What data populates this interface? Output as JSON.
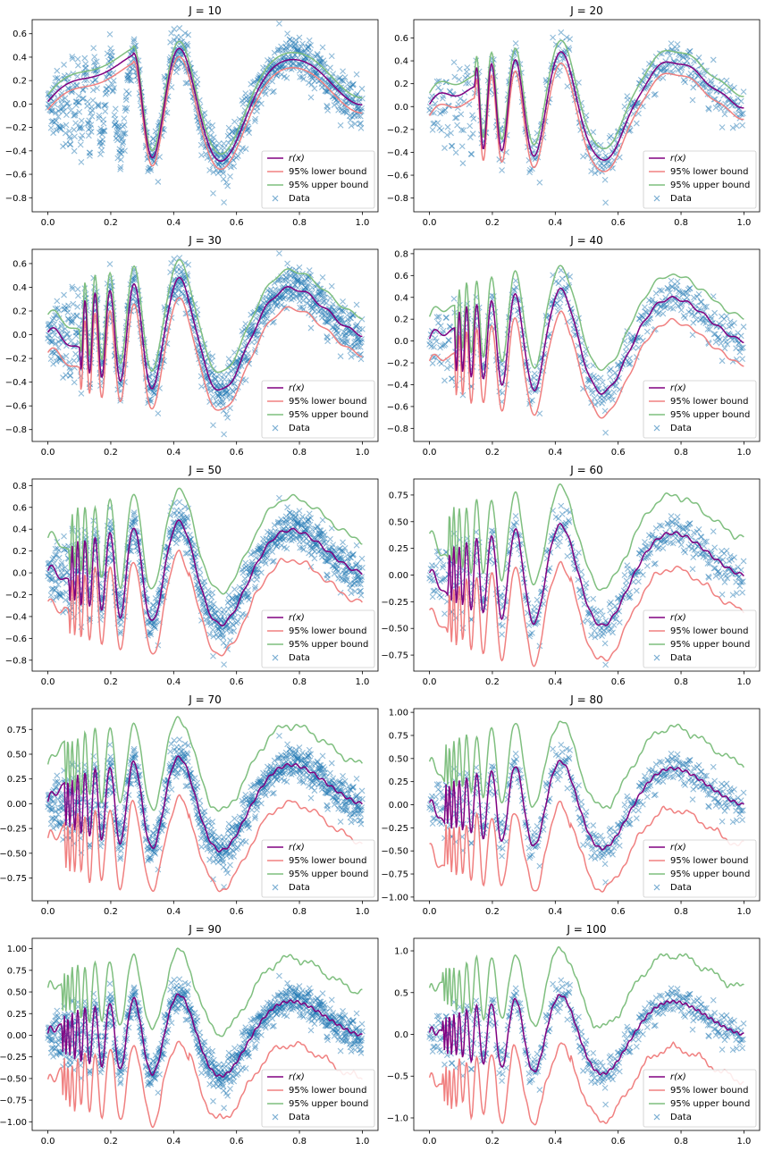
{
  "legend": {
    "labels": [
      "r(x)",
      "95% lower bound",
      "95% upper bound",
      "Data"
    ],
    "location": "lower right"
  },
  "colors": {
    "estimate": "#800080",
    "lower": "#f08080",
    "upper": "#7fbf7f",
    "data": "#1f77b4"
  },
  "chart_data": [
    {
      "type": "line",
      "title": "J = 10",
      "xlim": [
        -0.05,
        1.05
      ],
      "ylim": [
        -0.92,
        0.72
      ],
      "yticks": [
        -0.8,
        -0.6,
        -0.4,
        -0.2,
        0.0,
        0.2,
        0.4,
        0.6
      ],
      "ytick_labels": [
        "−0.8",
        "−0.6",
        "−0.4",
        "−0.2",
        "0.0",
        "0.2",
        "0.4",
        "0.6"
      ],
      "xticks": [
        0.0,
        0.2,
        0.4,
        0.6,
        0.8,
        1.0
      ],
      "xtick_labels": [
        "0.0",
        "0.2",
        "0.4",
        "0.6",
        "0.8",
        "1.0"
      ],
      "detail": 10,
      "lower_offset": 0.07,
      "upper_offset": 0.06,
      "band_spread": 0.0
    },
    {
      "type": "line",
      "title": "J = 20",
      "xlim": [
        -0.05,
        1.05
      ],
      "ylim": [
        -0.92,
        0.76
      ],
      "yticks": [
        -0.8,
        -0.6,
        -0.4,
        -0.2,
        0.0,
        0.2,
        0.4,
        0.6
      ],
      "ytick_labels": [
        "−0.8",
        "−0.6",
        "−0.4",
        "−0.2",
        "0.0",
        "0.2",
        "0.4",
        "0.6"
      ],
      "xticks": [
        0.0,
        0.2,
        0.4,
        0.6,
        0.8,
        1.0
      ],
      "xtick_labels": [
        "0.0",
        "0.2",
        "0.4",
        "0.6",
        "0.8",
        "1.0"
      ],
      "detail": 20,
      "lower_offset": 0.1,
      "upper_offset": 0.1,
      "band_spread": 0.0
    },
    {
      "type": "line",
      "title": "J = 30",
      "xlim": [
        -0.05,
        1.05
      ],
      "ylim": [
        -0.9,
        0.72
      ],
      "yticks": [
        -0.8,
        -0.6,
        -0.4,
        -0.2,
        0.0,
        0.2,
        0.4,
        0.6
      ],
      "ytick_labels": [
        "−0.8",
        "−0.6",
        "−0.4",
        "−0.2",
        "0.0",
        "0.2",
        "0.4",
        "0.6"
      ],
      "xticks": [
        0.0,
        0.2,
        0.4,
        0.6,
        0.8,
        1.0
      ],
      "xtick_labels": [
        "0.0",
        "0.2",
        "0.4",
        "0.6",
        "0.8",
        "1.0"
      ],
      "detail": 30,
      "lower_offset": 0.17,
      "upper_offset": 0.15,
      "band_spread": 0.0
    },
    {
      "type": "line",
      "title": "J = 40",
      "xlim": [
        -0.05,
        1.05
      ],
      "ylim": [
        -0.92,
        0.84
      ],
      "yticks": [
        -0.8,
        -0.6,
        -0.4,
        -0.2,
        0.0,
        0.2,
        0.4,
        0.6,
        0.8
      ],
      "ytick_labels": [
        "−0.8",
        "−0.6",
        "−0.4",
        "−0.2",
        "0.0",
        "0.2",
        "0.4",
        "0.6",
        "0.8"
      ],
      "xticks": [
        0.0,
        0.2,
        0.4,
        0.6,
        0.8,
        1.0
      ],
      "xtick_labels": [
        "0.0",
        "0.2",
        "0.4",
        "0.6",
        "0.8",
        "1.0"
      ],
      "detail": 40,
      "lower_offset": 0.2,
      "upper_offset": 0.2,
      "band_spread": 0.02
    },
    {
      "type": "line",
      "title": "J = 50",
      "xlim": [
        -0.05,
        1.05
      ],
      "ylim": [
        -0.9,
        0.86
      ],
      "yticks": [
        -0.8,
        -0.6,
        -0.4,
        -0.2,
        0.0,
        0.2,
        0.4,
        0.6,
        0.8
      ],
      "ytick_labels": [
        "−0.8",
        "−0.6",
        "−0.4",
        "−0.2",
        "0.0",
        "0.2",
        "0.4",
        "0.6",
        "0.8"
      ],
      "xticks": [
        0.0,
        0.2,
        0.4,
        0.6,
        0.8,
        1.0
      ],
      "xtick_labels": [
        "0.0",
        "0.2",
        "0.4",
        "0.6",
        "0.8",
        "1.0"
      ],
      "detail": 50,
      "lower_offset": 0.25,
      "upper_offset": 0.27,
      "band_spread": 0.04
    },
    {
      "type": "line",
      "title": "J = 60",
      "xlim": [
        -0.05,
        1.05
      ],
      "ylim": [
        -0.9,
        0.9
      ],
      "yticks": [
        -0.75,
        -0.5,
        -0.25,
        0.0,
        0.25,
        0.5,
        0.75
      ],
      "ytick_labels": [
        "−0.75",
        "−0.50",
        "−0.25",
        "0.00",
        "0.25",
        "0.50",
        "0.75"
      ],
      "xticks": [
        0.0,
        0.2,
        0.4,
        0.6,
        0.8,
        1.0
      ],
      "xtick_labels": [
        "0.0",
        "0.2",
        "0.4",
        "0.6",
        "0.8",
        "1.0"
      ],
      "detail": 60,
      "lower_offset": 0.3,
      "upper_offset": 0.32,
      "band_spread": 0.05
    },
    {
      "type": "line",
      "title": "J = 70",
      "xlim": [
        -0.05,
        1.05
      ],
      "ylim": [
        -0.98,
        0.96
      ],
      "yticks": [
        -0.75,
        -0.5,
        -0.25,
        0.0,
        0.25,
        0.5,
        0.75
      ],
      "ytick_labels": [
        "−0.75",
        "−0.50",
        "−0.25",
        "0.00",
        "0.25",
        "0.50",
        "0.75"
      ],
      "xticks": [
        0.0,
        0.2,
        0.4,
        0.6,
        0.8,
        1.0
      ],
      "xtick_labels": [
        "0.0",
        "0.2",
        "0.4",
        "0.6",
        "0.8",
        "1.0"
      ],
      "detail": 70,
      "lower_offset": 0.35,
      "upper_offset": 0.36,
      "band_spread": 0.06
    },
    {
      "type": "line",
      "title": "J = 80",
      "xlim": [
        -0.05,
        1.05
      ],
      "ylim": [
        -1.04,
        1.04
      ],
      "yticks": [
        -1.0,
        -0.75,
        -0.5,
        -0.25,
        0.0,
        0.25,
        0.5,
        0.75,
        1.0
      ],
      "ytick_labels": [
        "−1.00",
        "−0.75",
        "−0.50",
        "−0.25",
        "0.00",
        "0.25",
        "0.50",
        "0.75",
        "1.00"
      ],
      "xticks": [
        0.0,
        0.2,
        0.4,
        0.6,
        0.8,
        1.0
      ],
      "xtick_labels": [
        "0.0",
        "0.2",
        "0.4",
        "0.6",
        "0.8",
        "1.0"
      ],
      "detail": 80,
      "lower_offset": 0.4,
      "upper_offset": 0.4,
      "band_spread": 0.07
    },
    {
      "type": "line",
      "title": "J = 90",
      "xlim": [
        -0.05,
        1.05
      ],
      "ylim": [
        -1.1,
        1.12
      ],
      "yticks": [
        -1.0,
        -0.75,
        -0.5,
        -0.25,
        0.0,
        0.25,
        0.5,
        0.75,
        1.0
      ],
      "ytick_labels": [
        "−1.00",
        "−0.75",
        "−0.50",
        "−0.25",
        "0.00",
        "0.25",
        "0.50",
        "0.75",
        "1.00"
      ],
      "xticks": [
        0.0,
        0.2,
        0.4,
        0.6,
        0.8,
        1.0
      ],
      "xtick_labels": [
        "0.0",
        "0.2",
        "0.4",
        "0.6",
        "0.8",
        "1.0"
      ],
      "detail": 90,
      "lower_offset": 0.45,
      "upper_offset": 0.45,
      "band_spread": 0.08
    },
    {
      "type": "line",
      "title": "J = 100",
      "xlim": [
        -0.05,
        1.05
      ],
      "ylim": [
        -1.15,
        1.15
      ],
      "yticks": [
        -1.0,
        -0.5,
        0.0,
        0.5,
        1.0
      ],
      "ytick_labels": [
        "−1.0",
        "−0.5",
        "0.0",
        "0.5",
        "1.0"
      ],
      "xticks": [
        0.0,
        0.2,
        0.4,
        0.6,
        0.8,
        1.0
      ],
      "xtick_labels": [
        "0.0",
        "0.2",
        "0.4",
        "0.6",
        "0.8",
        "1.0"
      ],
      "detail": 100,
      "lower_offset": 0.5,
      "upper_offset": 0.5,
      "band_spread": 0.09
    }
  ]
}
